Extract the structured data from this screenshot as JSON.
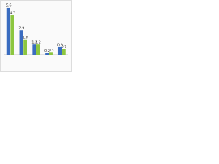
{
  "chart_data": {
    "type": "bar",
    "categories": [
      null,
      null,
      null,
      null,
      null
    ],
    "series": [
      {
        "color": "#3a6cc0",
        "values": [
          5.6,
          2.9,
          1.2,
          0.2,
          0.9
        ]
      },
      {
        "color": "#8cc63f",
        "values": [
          4.7,
          1.8,
          1.2,
          0.3,
          0.7
        ]
      }
    ],
    "ylim": [
      0,
      6
    ]
  }
}
